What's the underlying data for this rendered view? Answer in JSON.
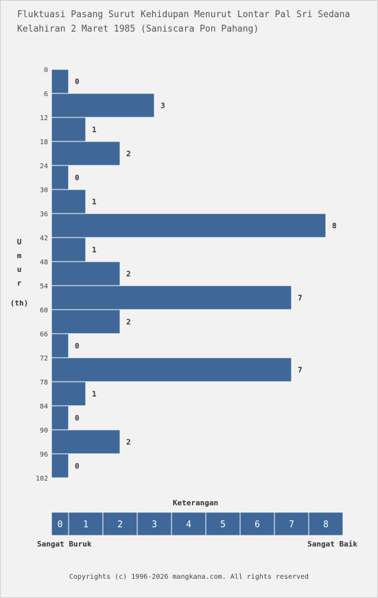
{
  "title_line1": "Fluktuasi Pasang Surut Kehidupan Menurut Lontar Pal Sri Sedana",
  "title_line2": "Kelahiran 2 Maret 1985 (Saniscara Pon Pahang)",
  "footer": "Copyrights (c) 1996-2026 mangkana.com. All rights reserved",
  "colors": {
    "bar": "#3f6898",
    "background": "#f2f2f2",
    "bar_border": "#ffffff"
  },
  "chart_data": {
    "type": "bar",
    "orientation": "horizontal",
    "ylabel_chars": [
      "U",
      "m",
      "u",
      "r"
    ],
    "ylabel_unit": "(th)",
    "y_ticks": [
      "0",
      "6",
      "12",
      "18",
      "24",
      "30",
      "36",
      "42",
      "48",
      "54",
      "60",
      "66",
      "72",
      "78",
      "84",
      "90",
      "96",
      "102"
    ],
    "categories": [
      "0",
      "6",
      "12",
      "18",
      "24",
      "30",
      "36",
      "42",
      "48",
      "54",
      "60",
      "66",
      "72",
      "78",
      "84",
      "90",
      "96"
    ],
    "values": [
      0,
      3,
      1,
      2,
      0,
      1,
      8,
      1,
      2,
      7,
      2,
      0,
      7,
      1,
      0,
      2,
      0
    ],
    "value_labels": [
      "0",
      "3",
      "1",
      "2",
      "0",
      "1",
      "8",
      "1",
      "2",
      "7",
      "2",
      "0",
      "7",
      "1",
      "0",
      "2",
      "0"
    ],
    "xlim": [
      0,
      8
    ],
    "legend": {
      "title": "Keterangan",
      "scale": [
        "0",
        "1",
        "2",
        "3",
        "4",
        "5",
        "6",
        "7",
        "8"
      ],
      "low_label": "Sangat Buruk",
      "high_label": "Sangat Baik"
    }
  }
}
